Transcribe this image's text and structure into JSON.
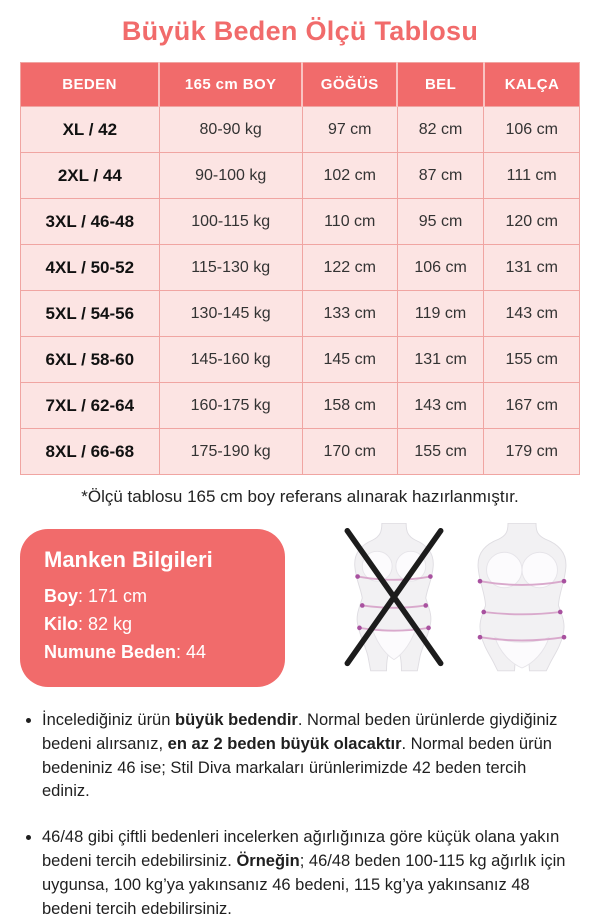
{
  "page": {
    "title": "Büyük Beden Ölçü Tablosu",
    "footnote": "*Ölçü tablosu 165 cm boy referans alınarak hazırlanmıştır."
  },
  "colors": {
    "accent": "#f16b6b",
    "table_row_bg": "#fce4e3",
    "table_border": "#f0a5a2",
    "text": "#262626",
    "measure_line": "#d9a9cc",
    "measure_dot": "#a8519f",
    "cross": "#1c1c1c"
  },
  "table": {
    "headers": [
      "BEDEN",
      "165 cm BOY",
      "GÖĞÜS",
      "BEL",
      "KALÇA"
    ],
    "rows": [
      [
        "XL / 42",
        "80-90 kg",
        "97 cm",
        "82 cm",
        "106 cm"
      ],
      [
        "2XL / 44",
        "90-100 kg",
        "102 cm",
        "87 cm",
        "111 cm"
      ],
      [
        "3XL / 46-48",
        "100-115 kg",
        "110 cm",
        "95 cm",
        "120 cm"
      ],
      [
        "4XL / 50-52",
        "115-130 kg",
        "122 cm",
        "106 cm",
        "131 cm"
      ],
      [
        "5XL / 54-56",
        "130-145 kg",
        "133 cm",
        "119 cm",
        "143 cm"
      ],
      [
        "6XL / 58-60",
        "145-160 kg",
        "145 cm",
        "131 cm",
        "155 cm"
      ],
      [
        "7XL / 62-64",
        "160-175 kg",
        "158 cm",
        "143 cm",
        "167 cm"
      ],
      [
        "8XL / 66-68",
        "175-190 kg",
        "170 cm",
        "155 cm",
        "179 cm"
      ]
    ]
  },
  "model_info": {
    "title": "Manken Bilgileri",
    "fields": [
      {
        "label": "Boy",
        "value": "171 cm"
      },
      {
        "label": "Kilo",
        "value": "82 kg"
      },
      {
        "label": "Numune Beden",
        "value": "44"
      }
    ]
  },
  "icons": {
    "crossed_figure": "female-torso-slim-crossed-icon",
    "allowed_figure": "female-torso-plus-icon",
    "cross": "x-cross-icon"
  },
  "notes": [
    {
      "segments": [
        {
          "text": "İncelediğiniz ürün ",
          "bold": false
        },
        {
          "text": "büyük bedendir",
          "bold": true
        },
        {
          "text": ". Normal beden ürünlerde giydiğiniz bedeni alırsanız, ",
          "bold": false
        },
        {
          "text": "en az 2 beden büyük olacaktır",
          "bold": true
        },
        {
          "text": ". Normal beden ürün bedeniniz 46 ise; Stil Diva markaları ürünlerimizde 42 beden tercih ediniz.",
          "bold": false
        }
      ]
    },
    {
      "segments": [
        {
          "text": "46/48 gibi çiftli bedenleri incelerken ağırlığınıza göre küçük olana yakın bedeni tercih edebilirsiniz. ",
          "bold": false
        },
        {
          "text": "Örneğin",
          "bold": true
        },
        {
          "text": "; 46/48 beden 100-115 kg ağırlık için uygunsa, 100 kg’ya yakınsanız 46 bedeni, 115 kg’ya yakınsanız 48 bedeni tercih edebilirsiniz.",
          "bold": false
        }
      ]
    }
  ]
}
